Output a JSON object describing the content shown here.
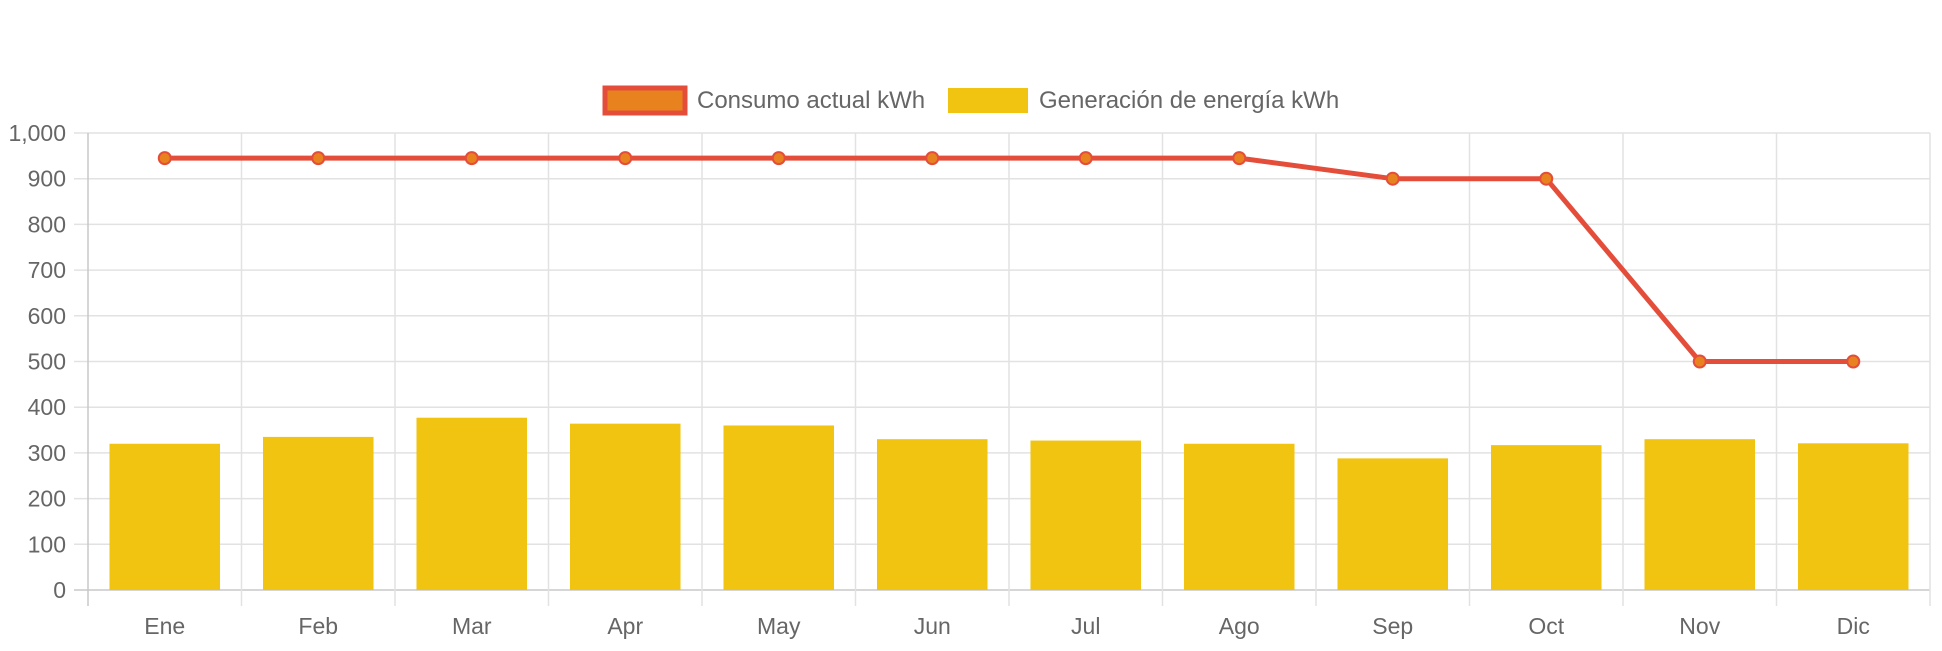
{
  "chart_data": {
    "type": "bar",
    "categories": [
      "Ene",
      "Feb",
      "Mar",
      "Apr",
      "May",
      "Jun",
      "Jul",
      "Ago",
      "Sep",
      "Oct",
      "Nov",
      "Dic"
    ],
    "series": [
      {
        "name": "Consumo actual kWh",
        "type": "line",
        "values": [
          945,
          945,
          945,
          945,
          945,
          945,
          945,
          945,
          900,
          900,
          500,
          500
        ],
        "line_color": "#e54d3b",
        "point_color": "#e8821f"
      },
      {
        "name": "Generación de energía kWh",
        "type": "bar",
        "values": [
          320,
          335,
          377,
          364,
          360,
          330,
          327,
          320,
          288,
          317,
          330,
          321
        ],
        "color": "#f0c410"
      }
    ],
    "yticks": [
      "0",
      "100",
      "200",
      "300",
      "400",
      "500",
      "600",
      "700",
      "800",
      "900",
      "1,000"
    ],
    "ylim": [
      0,
      1000
    ],
    "grid": true,
    "legend": "top"
  }
}
